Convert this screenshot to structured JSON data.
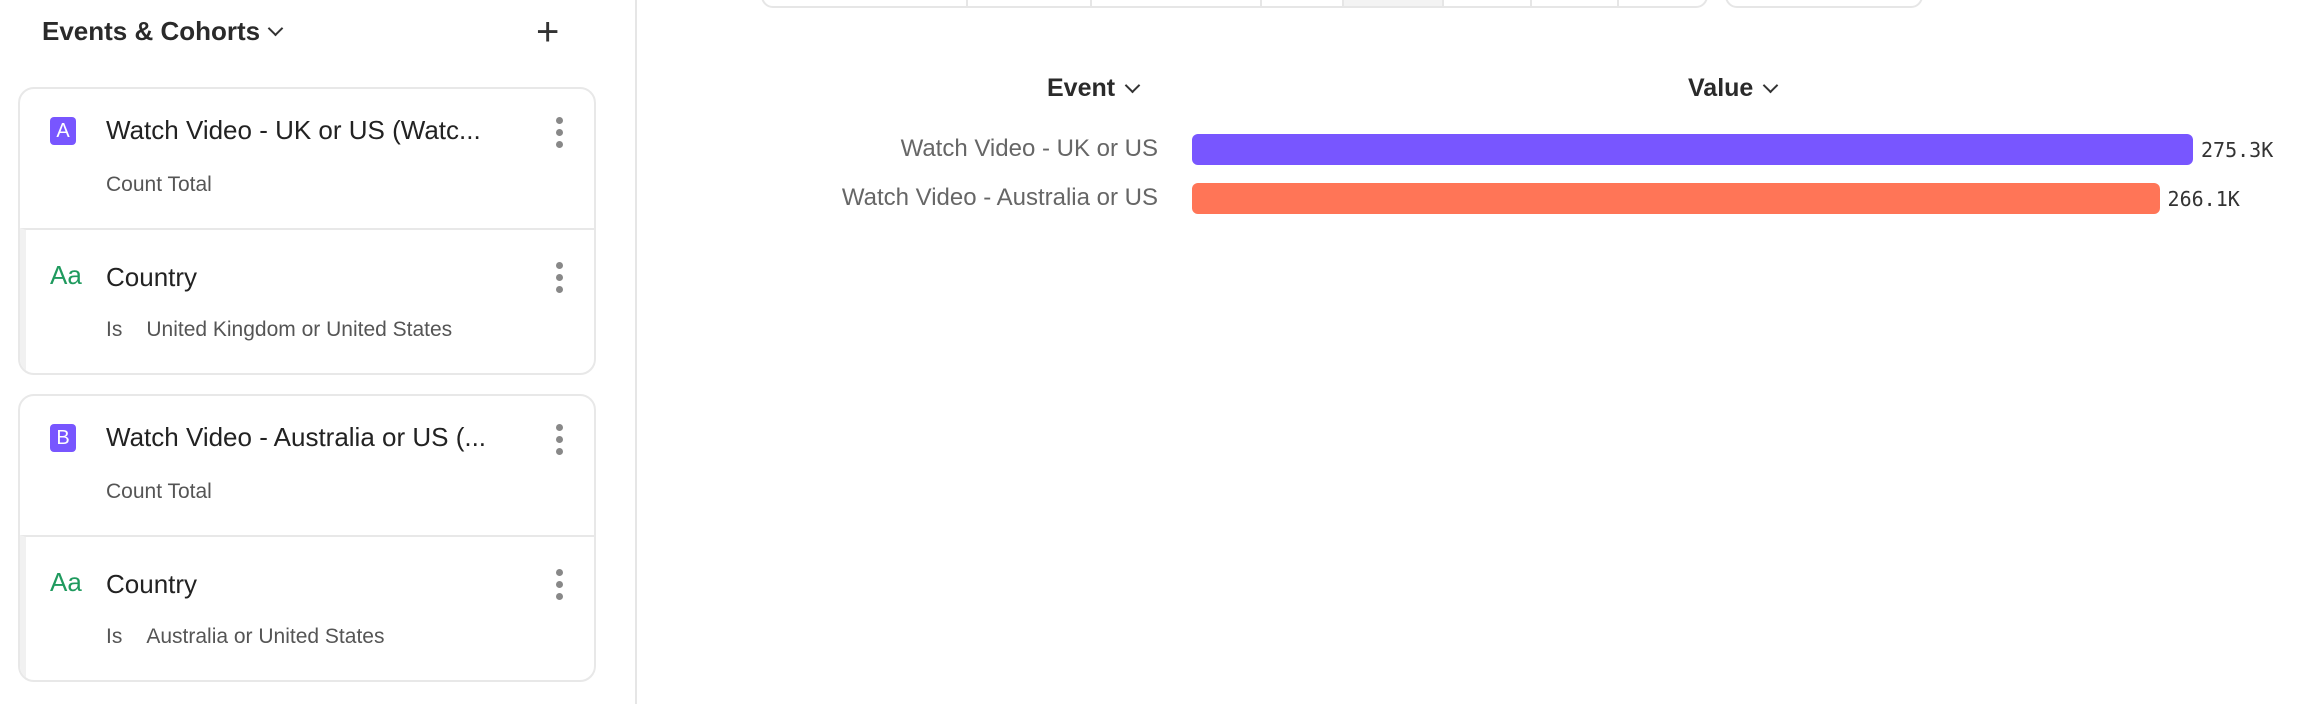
{
  "sidebar": {
    "title": "Events & Cohorts",
    "add_icon": "plus-icon",
    "cards": [
      {
        "badge": "A",
        "event": "Watch Video - UK or US (Watc...",
        "measure": "Count Total",
        "filter": {
          "property": "Country",
          "operator": "Is",
          "value": "United Kingdom or United States"
        }
      },
      {
        "badge": "B",
        "event": "Watch Video - Australia or US (...",
        "measure": "Count Total",
        "filter": {
          "property": "Country",
          "operator": "Is",
          "value": "Australia or United States"
        }
      }
    ],
    "property_icon_text": "Aa"
  },
  "chart_data": {
    "type": "bar",
    "orientation": "horizontal",
    "column_headers": [
      "Event",
      "Value"
    ],
    "categories": [
      "Watch Video - UK or US",
      "Watch Video - Australia or US"
    ],
    "values": [
      275300,
      266100
    ],
    "value_labels": [
      "275.3K",
      "266.1K"
    ],
    "colors": [
      "#7856ff",
      "#ff7557"
    ]
  }
}
